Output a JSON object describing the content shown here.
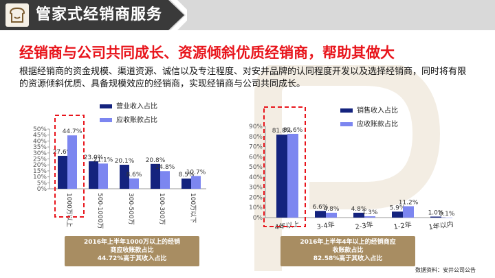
{
  "header": {
    "title": "管家式经销商服务"
  },
  "heading": "经销商与公司共同成长、资源倾斜优质经销商，帮助其做大",
  "body_text": "根据经销商的资金规模、渠道资源、诚信以及专注程度、对安井品牌的认同程度开发以及选择经销商，同时将有限的资源倾斜优质、具备规模效应的经销商，实现经销商与公司共同成长。",
  "colors": {
    "dark_bar": "#14237e",
    "light_bar": "#7c86f0",
    "accent_red": "#e8141b",
    "gold": "#a88d62",
    "header_dark": "#3a3a3a"
  },
  "chart_data": [
    {
      "type": "bar",
      "categories": [
        "1000万以上",
        "500-1000万",
        "300-500万",
        "100-300万",
        "100万以下"
      ],
      "series": [
        {
          "name": "营业收入占比",
          "values": [
            27.6,
            23.0,
            20.1,
            20.8,
            8.5
          ]
        },
        {
          "name": "应收账款占比",
          "values": [
            44.7,
            21.1,
            8.6,
            14.8,
            10.7
          ]
        }
      ],
      "ylim": [
        0,
        50
      ],
      "yticks": [
        "0%",
        "5%",
        "10%",
        "15%",
        "20%",
        "25%",
        "30%",
        "35%",
        "40%",
        "45%",
        "50%"
      ],
      "legend": "top-center"
    },
    {
      "type": "bar",
      "categories": [
        "4年以上",
        "3-4年",
        "2-3年",
        "1-2年",
        "1年以内"
      ],
      "series": [
        {
          "name": "销售收入占比",
          "values": [
            81.8,
            6.6,
            4.8,
            5.9,
            1.0
          ]
        },
        {
          "name": "应收账款占比",
          "values": [
            82.6,
            4.8,
            1.3,
            11.2,
            0.1
          ]
        }
      ],
      "ylim": [
        0,
        90
      ],
      "yticks": [
        "0%",
        "10%",
        "20%",
        "30%",
        "40%",
        "50%",
        "60%",
        "70%",
        "80%",
        "90%"
      ],
      "legend": "top-center"
    }
  ],
  "callouts": [
    {
      "line1": "2016年上半年1000万以上的经销",
      "line2": "商应收账款占比",
      "line3": "44.72%高于其收入占比"
    },
    {
      "line1": "2016年上半年4年以上的经销商应",
      "line2": "收账款占比",
      "line3": "82.58%高于其收入占比"
    }
  ],
  "source": "数据资料：安井公司公告"
}
